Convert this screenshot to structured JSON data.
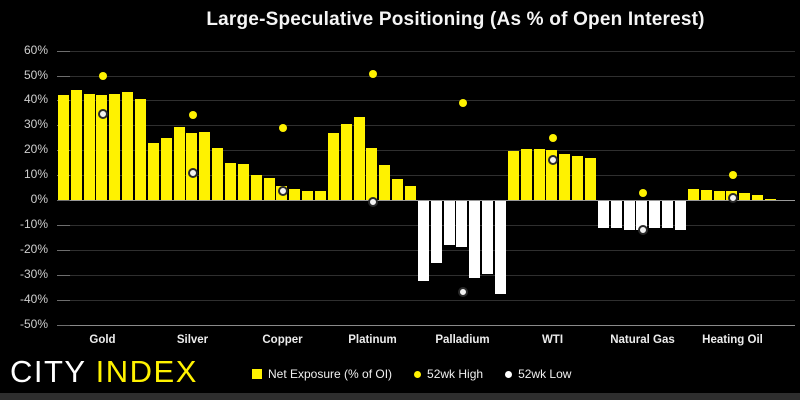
{
  "header": {
    "title": "Large-Speculative Positioning (As % of Open Interest)"
  },
  "legend": {
    "net_exposure": "Net Exposure (% of OI)",
    "high": "52wk High",
    "low": "52wk Low"
  },
  "logo": {
    "city": "CITY",
    "index": "INDEX"
  },
  "colors": {
    "background": "#000000",
    "bar_positive": "#FFF200",
    "bar_negative": "#FFFFFF",
    "high_dot": "#FFF200",
    "low_dot": "#F2F2F2",
    "gridline": "#2F2F2F",
    "zero_line": "#9A9A9A",
    "bottom_line": "#8A8A8A",
    "tick": "#6E6E6E",
    "footer_strip": "#2E2E2E"
  },
  "y_axis": {
    "max": 60,
    "min": -50,
    "step": 10,
    "tick_labels": [
      "60%",
      "50%",
      "40%",
      "30%",
      "20%",
      "10%",
      "0%",
      "-10%",
      "-20%",
      "-30%",
      "-40%",
      "-50%"
    ]
  },
  "chart_data": {
    "type": "bar",
    "title": "Large-Speculative Positioning (As % of Open Interest)",
    "xlabel": "",
    "ylabel": "",
    "ylim": [
      -50,
      60
    ],
    "grid": true,
    "legend_position": "bottom",
    "categories": [
      "Gold",
      "Silver",
      "Copper",
      "Platinum",
      "Palladium",
      "WTI",
      "Natural Gas",
      "Heating Oil"
    ],
    "series": [
      {
        "name": "Net Exposure (% of OI)",
        "type": "bar",
        "note": "7 weekly bars per commodity, oldest to newest, % of open interest",
        "values_per_category": [
          [
            42,
            44,
            42.5,
            42,
            42.5,
            43.5,
            40.5
          ],
          [
            23,
            25,
            29.5,
            27,
            27.5,
            21,
            15
          ],
          [
            14.5,
            10,
            9,
            5.5,
            4.5,
            3.5,
            3.5
          ],
          [
            27,
            30.5,
            33.5,
            21,
            14,
            8.5,
            5.5
          ],
          [
            -32,
            -25,
            -17.5,
            -18.5,
            -31,
            -29.5,
            -37.5
          ],
          [
            19.5,
            20.5,
            20.5,
            20,
            18.5,
            17.5,
            17
          ],
          [
            -11,
            -11,
            -11.5,
            -11.5,
            -11,
            -11,
            -11.5
          ],
          [
            4.5,
            4,
            3.5,
            3.5,
            3,
            2,
            0.5
          ]
        ]
      },
      {
        "name": "52wk High",
        "type": "point",
        "values": [
          50,
          34,
          29,
          50.5,
          39,
          25,
          3,
          10
        ]
      },
      {
        "name": "52wk Low",
        "type": "point",
        "values": [
          34.5,
          11,
          3.5,
          -1,
          -37,
          16,
          -12,
          1
        ]
      }
    ]
  }
}
